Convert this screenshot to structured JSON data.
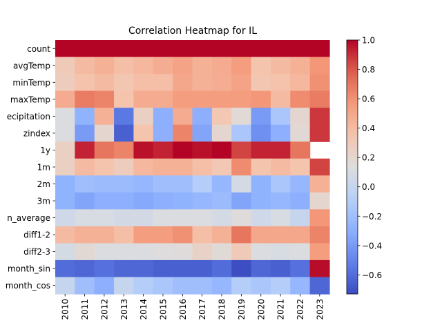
{
  "chart_data": {
    "type": "heatmap",
    "title": "Correlation Heatmap for IL",
    "colormap": "coolwarm",
    "vmin": -0.73,
    "vmax": 1.0,
    "x": [
      "2010",
      "2011",
      "2012",
      "2013",
      "2014",
      "2015",
      "2016",
      "2017",
      "2018",
      "2019",
      "2020",
      "2021",
      "2022",
      "2023"
    ],
    "y": [
      "count",
      "avgTemp",
      "minTemp",
      "maxTemp",
      "ecipitation",
      "zindex",
      "1y",
      "1m",
      "2m",
      "3m",
      "n_average",
      "diff1-2",
      "diff2-3",
      "month_sin",
      "month_cos"
    ],
    "values": [
      [
        1.0,
        1.0,
        1.0,
        1.0,
        1.0,
        1.0,
        1.0,
        1.0,
        1.0,
        1.0,
        1.0,
        1.0,
        1.0,
        1.0
      ],
      [
        0.3,
        0.4,
        0.45,
        0.38,
        0.42,
        0.47,
        0.52,
        0.45,
        0.48,
        0.55,
        0.35,
        0.4,
        0.45,
        0.58
      ],
      [
        0.28,
        0.36,
        0.4,
        0.33,
        0.38,
        0.38,
        0.5,
        0.45,
        0.47,
        0.52,
        0.33,
        0.36,
        0.42,
        0.6
      ],
      [
        0.48,
        0.68,
        0.65,
        0.35,
        0.48,
        0.48,
        0.55,
        0.55,
        0.55,
        0.55,
        0.58,
        0.4,
        0.62,
        0.68
      ],
      [
        0.12,
        -0.28,
        0.45,
        -0.55,
        0.25,
        -0.3,
        0.48,
        -0.3,
        0.32,
        0.17,
        -0.4,
        -0.15,
        0.2,
        0.88
      ],
      [
        0.12,
        -0.4,
        0.2,
        -0.65,
        0.35,
        -0.3,
        0.65,
        -0.35,
        0.2,
        -0.15,
        -0.45,
        -0.3,
        0.18,
        0.88
      ],
      [
        0.25,
        0.93,
        0.7,
        0.65,
        0.97,
        0.93,
        1.0,
        0.97,
        1.0,
        0.85,
        0.93,
        0.93,
        0.7,
        null
      ],
      [
        0.25,
        0.4,
        0.35,
        0.28,
        0.42,
        0.45,
        0.45,
        0.38,
        0.32,
        0.62,
        0.35,
        0.4,
        0.35,
        0.85
      ],
      [
        -0.28,
        -0.2,
        -0.22,
        -0.22,
        -0.25,
        -0.2,
        -0.2,
        -0.1,
        -0.25,
        0.08,
        -0.28,
        -0.15,
        -0.25,
        0.45
      ],
      [
        -0.28,
        -0.35,
        -0.3,
        -0.3,
        -0.33,
        -0.3,
        -0.28,
        -0.25,
        -0.22,
        -0.35,
        -0.28,
        -0.25,
        -0.3,
        0.2
      ],
      [
        0.05,
        0.1,
        0.1,
        0.07,
        0.07,
        0.12,
        0.12,
        0.12,
        0.08,
        0.15,
        0.05,
        0.1,
        0.0,
        0.58
      ],
      [
        0.4,
        0.45,
        0.45,
        0.38,
        0.55,
        0.55,
        0.6,
        0.38,
        0.45,
        0.7,
        0.5,
        0.5,
        0.5,
        0.65
      ],
      [
        0.08,
        0.18,
        0.12,
        0.12,
        0.12,
        0.14,
        0.15,
        0.23,
        0.16,
        0.3,
        0.12,
        0.1,
        0.12,
        0.55
      ],
      [
        -0.6,
        -0.62,
        -0.58,
        -0.62,
        -0.62,
        -0.65,
        -0.65,
        -0.65,
        -0.6,
        -0.72,
        -0.62,
        -0.65,
        -0.58,
        0.98
      ],
      [
        0.0,
        -0.2,
        -0.3,
        0.0,
        -0.1,
        -0.15,
        -0.2,
        -0.2,
        -0.25,
        -0.1,
        -0.15,
        -0.1,
        -0.25,
        -0.62
      ]
    ],
    "colorbar_ticks": [
      1.0,
      0.8,
      0.6,
      0.4,
      0.2,
      0.0,
      -0.2,
      -0.4,
      -0.6
    ],
    "colorbar_tick_labels": [
      "1.0",
      "0.8",
      "0.6",
      "0.4",
      "0.2",
      "0.0",
      "−0.2",
      "−0.4",
      "−0.6"
    ]
  }
}
